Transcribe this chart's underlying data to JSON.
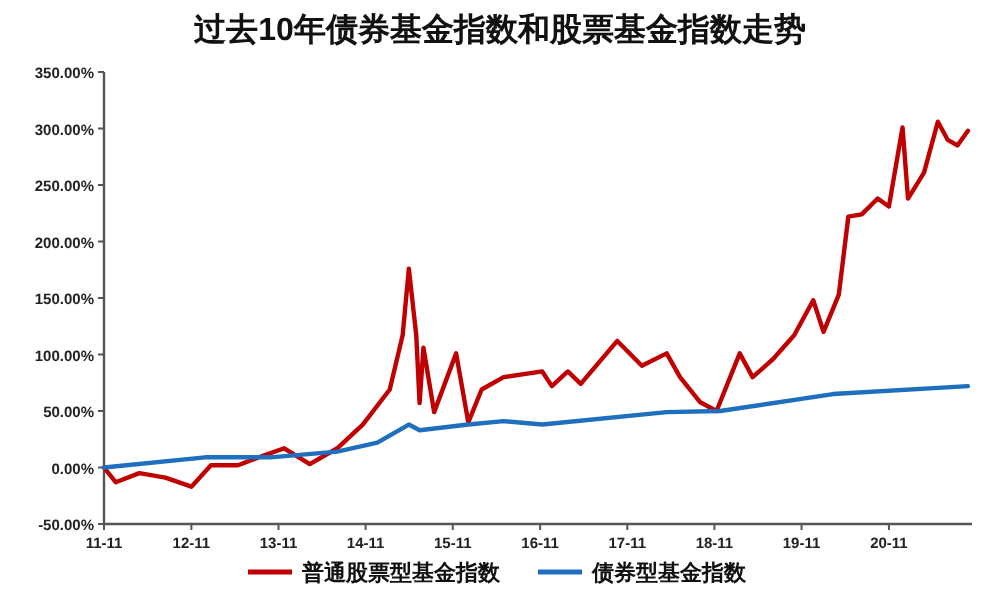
{
  "chart_data": {
    "type": "line",
    "title": "过去10年债券基金指数和股票基金指数走势",
    "ylim": [
      -50,
      350
    ],
    "yticks": [
      {
        "value": -50,
        "label": "-50.00%"
      },
      {
        "value": 0,
        "label": "0.00%"
      },
      {
        "value": 50,
        "label": "50.00%"
      },
      {
        "value": 100,
        "label": "100.00%"
      },
      {
        "value": 150,
        "label": "150.00%"
      },
      {
        "value": 200,
        "label": "200.00%"
      },
      {
        "value": 250,
        "label": "250.00%"
      },
      {
        "value": 300,
        "label": "300.00%"
      },
      {
        "value": 350,
        "label": "350.00%"
      }
    ],
    "xlim": [
      "2011-11-01",
      "2021-10-15"
    ],
    "xticks": [
      {
        "value": "2011-11",
        "label": "11-11"
      },
      {
        "value": "2012-11",
        "label": "12-11"
      },
      {
        "value": "2013-11",
        "label": "13-11"
      },
      {
        "value": "2014-11",
        "label": "14-11"
      },
      {
        "value": "2015-11",
        "label": "15-11"
      },
      {
        "value": "2016-11",
        "label": "16-11"
      },
      {
        "value": "2017-11",
        "label": "17-11"
      },
      {
        "value": "2018-11",
        "label": "18-11"
      },
      {
        "value": "2019-11",
        "label": "19-11"
      },
      {
        "value": "2020-11",
        "label": "20-11"
      }
    ],
    "grid": false,
    "legend": "bottom",
    "marker": "none",
    "line_style": "solid",
    "series": [
      {
        "name": "普通股票型基金指数",
        "color": "#c00000",
        "x": [
          "2011-11-01",
          "2011-12-20",
          "2012-03-28",
          "2012-07-15",
          "2012-11-01",
          "2013-01-22",
          "2013-05-15",
          "2013-09-05",
          "2013-11-25",
          "2014-03-12",
          "2014-07-05",
          "2014-10-20",
          "2015-02-10",
          "2015-04-05",
          "2015-05-01",
          "2015-06-01",
          "2015-06-15",
          "2015-07-01",
          "2015-08-15",
          "2015-11-15",
          "2016-01-05",
          "2016-03-01",
          "2016-06-01",
          "2016-11-10",
          "2016-12-20",
          "2017-02-25",
          "2017-04-20",
          "2017-09-20",
          "2018-01-01",
          "2018-04-15",
          "2018-06-10",
          "2018-09-01",
          "2018-11-10",
          "2019-02-15",
          "2019-04-10",
          "2019-07-05",
          "2019-10-01",
          "2019-12-20",
          "2020-02-01",
          "2020-04-05",
          "2020-05-15",
          "2020-07-10",
          "2020-09-15",
          "2020-11-01",
          "2020-12-28",
          "2021-01-20",
          "2021-03-28",
          "2021-05-25",
          "2021-07-05",
          "2021-08-15",
          "2021-09-28"
        ],
        "values": [
          0,
          -13,
          -5,
          -9,
          -17,
          2,
          2,
          11,
          17,
          3,
          17,
          38,
          69,
          117,
          176,
          117,
          57,
          106,
          49,
          101,
          40,
          69,
          80,
          85,
          72,
          85,
          74,
          112,
          90,
          101,
          80,
          58,
          50,
          101,
          80,
          96,
          117,
          148,
          120,
          153,
          222,
          224,
          238,
          231,
          301,
          238,
          261,
          306,
          290,
          285,
          298
        ]
      },
      {
        "name": "债券型基金指数",
        "color": "#1f6fbf",
        "x": [
          "2011-11-01",
          "2012-12-28",
          "2013-09-28",
          "2014-07-05",
          "2014-12-20",
          "2015-05-01",
          "2015-06-15",
          "2016-01-05",
          "2016-06-01",
          "2016-11-10",
          "2018-04-15",
          "2018-11-25",
          "2020-03-12",
          "2021-09-28"
        ],
        "values": [
          0,
          9,
          9,
          14,
          22,
          38,
          33,
          38,
          41,
          38,
          49,
          50,
          65,
          72
        ]
      }
    ]
  }
}
